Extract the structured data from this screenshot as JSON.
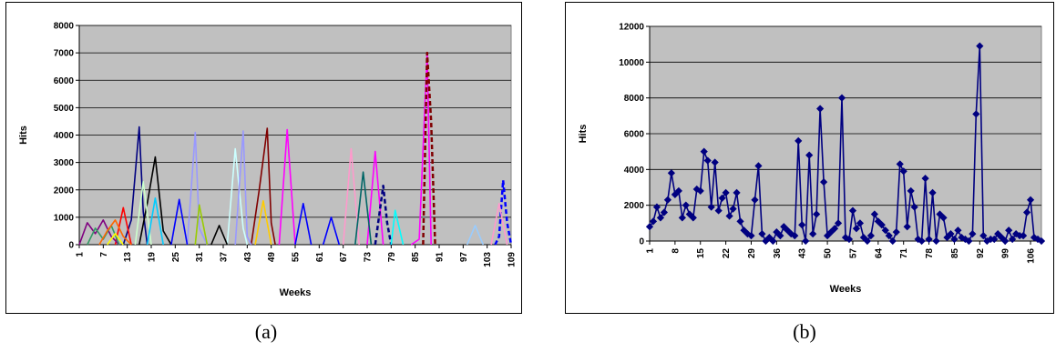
{
  "chart_data": [
    {
      "type": "line",
      "title": "",
      "xlabel": "Weeks",
      "ylabel": "Hits",
      "ylim": [
        0,
        8000
      ],
      "y_ticks": [
        "0",
        "1000",
        "2000",
        "3000",
        "4000",
        "5000",
        "6000",
        "7000",
        "8000"
      ],
      "x_ticks": [
        "1",
        "7",
        "13",
        "19",
        "25",
        "31",
        "37",
        "43",
        "49",
        "55",
        "61",
        "67",
        "73",
        "79",
        "85",
        "91",
        "97",
        "103",
        "109"
      ],
      "x_range": [
        1,
        109
      ],
      "plot_background": "#c0c0c0",
      "grid": "horizontal",
      "legend": "none",
      "caption": "(a)",
      "series": [
        {
          "color": "#000080",
          "dash": false,
          "points": [
            [
              12,
              0
            ],
            [
              14,
              900
            ],
            [
              16,
              4300
            ],
            [
              17,
              1200
            ],
            [
              18,
              0
            ]
          ]
        },
        {
          "color": "#000000",
          "dash": false,
          "points": [
            [
              16,
              0
            ],
            [
              18,
              1500
            ],
            [
              20,
              3200
            ],
            [
              22,
              500
            ],
            [
              24,
              0
            ]
          ]
        },
        {
          "color": "#800000",
          "dash": false,
          "points": [
            [
              44,
              0
            ],
            [
              46,
              2000
            ],
            [
              48,
              4250
            ],
            [
              49,
              800
            ],
            [
              50,
              0
            ]
          ]
        },
        {
          "color": "#ff00ff",
          "dash": false,
          "points": [
            [
              84,
              0
            ],
            [
              86,
              200
            ],
            [
              88,
              7000
            ],
            [
              89,
              0
            ]
          ]
        },
        {
          "color": "#800000",
          "dash": true,
          "points": [
            [
              87,
              0
            ],
            [
              88,
              7000
            ],
            [
              89,
              4500
            ],
            [
              90,
              0
            ]
          ]
        },
        {
          "color": "#9999ff",
          "dash": false,
          "points": [
            [
              28,
              0
            ],
            [
              30,
              4100
            ],
            [
              31,
              600
            ],
            [
              33,
              0
            ]
          ]
        },
        {
          "color": "#ccffff",
          "dash": false,
          "points": [
            [
              38,
              0
            ],
            [
              40,
              3500
            ],
            [
              42,
              600
            ],
            [
              43,
              0
            ]
          ]
        },
        {
          "color": "#9999ff",
          "dash": false,
          "points": [
            [
              40,
              0
            ],
            [
              42,
              4150
            ],
            [
              43,
              300
            ],
            [
              44,
              0
            ]
          ]
        },
        {
          "color": "#ff00ff",
          "dash": false,
          "points": [
            [
              51,
              0
            ],
            [
              53,
              4200
            ],
            [
              55,
              0
            ]
          ]
        },
        {
          "color": "#ff99cc",
          "dash": false,
          "points": [
            [
              67,
              0
            ],
            [
              69,
              3500
            ],
            [
              71,
              0
            ]
          ]
        },
        {
          "color": "#ff00ff",
          "dash": false,
          "points": [
            [
              73,
              0
            ],
            [
              75,
              3400
            ],
            [
              77,
              0
            ]
          ]
        },
        {
          "color": "#006666",
          "dash": false,
          "points": [
            [
              70,
              0
            ],
            [
              72,
              2650
            ],
            [
              74,
              0
            ]
          ]
        },
        {
          "color": "#000080",
          "dash": true,
          "points": [
            [
              75,
              0
            ],
            [
              77,
              2150
            ],
            [
              78,
              800
            ],
            [
              79,
              0
            ]
          ]
        },
        {
          "color": "#00ffff",
          "dash": false,
          "points": [
            [
              79,
              0
            ],
            [
              80,
              1250
            ],
            [
              82,
              0
            ]
          ]
        },
        {
          "color": "#0000ff",
          "dash": true,
          "points": [
            [
              105,
              0
            ],
            [
              106,
              300
            ],
            [
              107,
              2350
            ],
            [
              108,
              800
            ],
            [
              109,
              0
            ]
          ]
        },
        {
          "color": "#ff99cc",
          "dash": false,
          "points": [
            [
              104,
              0
            ],
            [
              106,
              1500
            ],
            [
              108,
              0
            ]
          ]
        },
        {
          "color": "#0000ff",
          "dash": false,
          "points": [
            [
              24,
              0
            ],
            [
              26,
              1650
            ],
            [
              28,
              0
            ]
          ]
        },
        {
          "color": "#0000ff",
          "dash": false,
          "points": [
            [
              55,
              0
            ],
            [
              57,
              1500
            ],
            [
              59,
              0
            ]
          ]
        },
        {
          "color": "#ffcc00",
          "dash": false,
          "points": [
            [
              45,
              0
            ],
            [
              47,
              1600
            ],
            [
              49,
              0
            ]
          ]
        },
        {
          "color": "#ccffcc",
          "dash": false,
          "points": [
            [
              15,
              0
            ],
            [
              17,
              2300
            ],
            [
              19,
              0
            ]
          ]
        },
        {
          "color": "#ff0000",
          "dash": false,
          "points": [
            [
              10,
              0
            ],
            [
              12,
              1350
            ],
            [
              14,
              0
            ]
          ]
        },
        {
          "color": "#800080",
          "dash": false,
          "points": [
            [
              1,
              0
            ],
            [
              3,
              800
            ],
            [
              5,
              400
            ],
            [
              7,
              900
            ],
            [
              9,
              300
            ],
            [
              11,
              0
            ]
          ]
        },
        {
          "color": "#339966",
          "dash": false,
          "points": [
            [
              3,
              0
            ],
            [
              5,
              600
            ],
            [
              7,
              200
            ],
            [
              9,
              700
            ],
            [
              11,
              0
            ]
          ]
        },
        {
          "color": "#ff6600",
          "dash": false,
          "points": [
            [
              6,
              0
            ],
            [
              8,
              500
            ],
            [
              10,
              900
            ],
            [
              12,
              300
            ],
            [
              14,
              0
            ]
          ]
        },
        {
          "color": "#00ccff",
          "dash": false,
          "points": [
            [
              18,
              0
            ],
            [
              20,
              1700
            ],
            [
              22,
              0
            ]
          ]
        },
        {
          "color": "#0000ff",
          "dash": false,
          "points": [
            [
              62,
              0
            ],
            [
              64,
              1000
            ],
            [
              66,
              0
            ]
          ]
        },
        {
          "color": "#99cc00",
          "dash": false,
          "points": [
            [
              30,
              0
            ],
            [
              31,
              1450
            ],
            [
              33,
              0
            ]
          ]
        },
        {
          "color": "#000000",
          "dash": false,
          "points": [
            [
              34,
              0
            ],
            [
              36,
              700
            ],
            [
              38,
              0
            ]
          ]
        },
        {
          "color": "#99ccff",
          "dash": false,
          "points": [
            [
              98,
              0
            ],
            [
              100,
              700
            ],
            [
              102,
              0
            ]
          ]
        },
        {
          "color": "#ffff00",
          "dash": false,
          "points": [
            [
              8,
              0
            ],
            [
              10,
              400
            ],
            [
              12,
              0
            ]
          ]
        }
      ]
    },
    {
      "type": "line",
      "title": "",
      "xlabel": "Weeks",
      "ylabel": "Hits",
      "ylim": [
        0,
        12000
      ],
      "y_ticks": [
        "0",
        "2000",
        "4000",
        "6000",
        "8000",
        "10000",
        "12000"
      ],
      "x_ticks": [
        "1",
        "8",
        "15",
        "22",
        "29",
        "36",
        "43",
        "50",
        "57",
        "64",
        "71",
        "78",
        "85",
        "92",
        "99",
        "106"
      ],
      "x_range": [
        1,
        109
      ],
      "plot_background": "#c0c0c0",
      "grid": "horizontal",
      "legend": "none",
      "caption": "(b)",
      "series": [
        {
          "color": "#000080",
          "marker": "diamond",
          "values": [
            800,
            1100,
            1900,
            1300,
            1600,
            2300,
            3800,
            2600,
            2800,
            1300,
            2000,
            1500,
            1300,
            2900,
            2800,
            5000,
            4500,
            1900,
            4400,
            1700,
            2400,
            2700,
            1400,
            1800,
            2700,
            1100,
            600,
            400,
            300,
            2300,
            4200,
            400,
            0,
            200,
            0,
            500,
            300,
            800,
            600,
            400,
            300,
            5600,
            900,
            0,
            4800,
            400,
            1500,
            7400,
            3300,
            300,
            500,
            700,
            1000,
            8000,
            200,
            100,
            1700,
            700,
            1000,
            200,
            0,
            300,
            1500,
            1100,
            900,
            600,
            300,
            0,
            500,
            4300,
            3900,
            800,
            2800,
            1900,
            100,
            0,
            3500,
            100,
            2700,
            0,
            1500,
            1300,
            200,
            400,
            100,
            600,
            200,
            100,
            0,
            400,
            7100,
            10900,
            300,
            0,
            100,
            100,
            400,
            200,
            0,
            600,
            100,
            400,
            300,
            300,
            1600,
            2300,
            200,
            100,
            0
          ]
        }
      ]
    }
  ]
}
